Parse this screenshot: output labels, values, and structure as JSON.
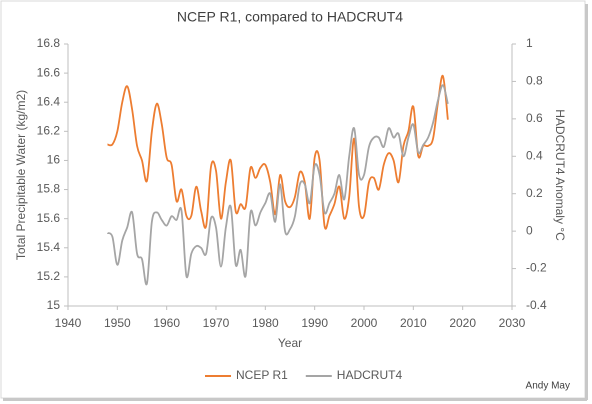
{
  "chart_data": {
    "type": "line",
    "title": "NCEP R1, compared to HADCRUT4",
    "x_label": "Year",
    "y_label": "Total Precipitable Water (kg/m2)",
    "y2_label": "HADCRUT4 Anomaly °C",
    "annotation": "Andy May",
    "xlim": [
      1940,
      2030
    ],
    "xticks": [
      1940,
      1950,
      1960,
      1970,
      1980,
      1990,
      2000,
      2010,
      2020,
      2030
    ],
    "ylim": [
      15,
      16.8
    ],
    "yticks": [
      15,
      15.2,
      15.4,
      15.6,
      15.8,
      16,
      16.2,
      16.4,
      16.6,
      16.8
    ],
    "y2lim": [
      -0.4,
      1
    ],
    "y2ticks": [
      -0.4,
      -0.2,
      0,
      0.2,
      0.4,
      0.6,
      0.8,
      1
    ],
    "grid": false,
    "legend": "bottom",
    "x": [
      1948,
      1949,
      1950,
      1951,
      1952,
      1953,
      1954,
      1955,
      1956,
      1957,
      1958,
      1959,
      1960,
      1961,
      1962,
      1963,
      1964,
      1965,
      1966,
      1967,
      1968,
      1969,
      1970,
      1971,
      1972,
      1973,
      1974,
      1975,
      1976,
      1977,
      1978,
      1979,
      1980,
      1981,
      1982,
      1983,
      1984,
      1985,
      1986,
      1987,
      1988,
      1989,
      1990,
      1991,
      1992,
      1993,
      1994,
      1995,
      1996,
      1997,
      1998,
      1999,
      2000,
      2001,
      2002,
      2003,
      2004,
      2005,
      2006,
      2007,
      2008,
      2009,
      2010,
      2011,
      2012,
      2013,
      2014,
      2015,
      2016,
      2017
    ],
    "series": [
      {
        "name": "NCEP R1",
        "color": "#ed7d31",
        "axis": "y",
        "values": [
          16.11,
          16.11,
          16.2,
          16.4,
          16.51,
          16.35,
          16.1,
          16.0,
          15.86,
          16.2,
          16.39,
          16.25,
          16.02,
          15.97,
          15.72,
          15.8,
          15.62,
          15.62,
          15.82,
          15.65,
          15.55,
          15.96,
          15.93,
          15.6,
          15.85,
          16.0,
          15.65,
          15.7,
          15.68,
          15.95,
          15.88,
          15.95,
          15.97,
          15.85,
          15.63,
          15.9,
          15.72,
          15.68,
          15.75,
          15.92,
          15.85,
          15.6,
          16.02,
          16.0,
          15.55,
          15.62,
          15.7,
          15.82,
          15.6,
          15.75,
          16.15,
          15.68,
          15.62,
          15.85,
          15.88,
          15.8,
          15.97,
          16.05,
          16.0,
          15.85,
          16.1,
          16.2,
          16.37,
          16.03,
          16.1,
          16.1,
          16.15,
          16.4,
          16.58,
          16.28
        ]
      },
      {
        "name": "HADCRUT4",
        "color": "#a5a5a5",
        "axis": "y2",
        "values": [
          -0.01,
          -0.03,
          -0.18,
          -0.05,
          0.02,
          0.1,
          -0.12,
          -0.15,
          -0.28,
          0.05,
          0.1,
          0.06,
          0.03,
          0.08,
          0.06,
          0.11,
          -0.24,
          -0.12,
          -0.08,
          -0.09,
          -0.12,
          0.07,
          0.02,
          -0.19,
          0.02,
          0.13,
          -0.18,
          -0.1,
          -0.24,
          0.1,
          0.03,
          0.1,
          0.15,
          0.2,
          0.05,
          0.25,
          0.0,
          0.01,
          0.08,
          0.25,
          0.25,
          0.15,
          0.35,
          0.3,
          0.1,
          0.15,
          0.2,
          0.3,
          0.17,
          0.4,
          0.55,
          0.3,
          0.3,
          0.45,
          0.5,
          0.5,
          0.45,
          0.55,
          0.5,
          0.52,
          0.4,
          0.5,
          0.57,
          0.42,
          0.46,
          0.5,
          0.58,
          0.7,
          0.78,
          0.68
        ]
      }
    ]
  }
}
